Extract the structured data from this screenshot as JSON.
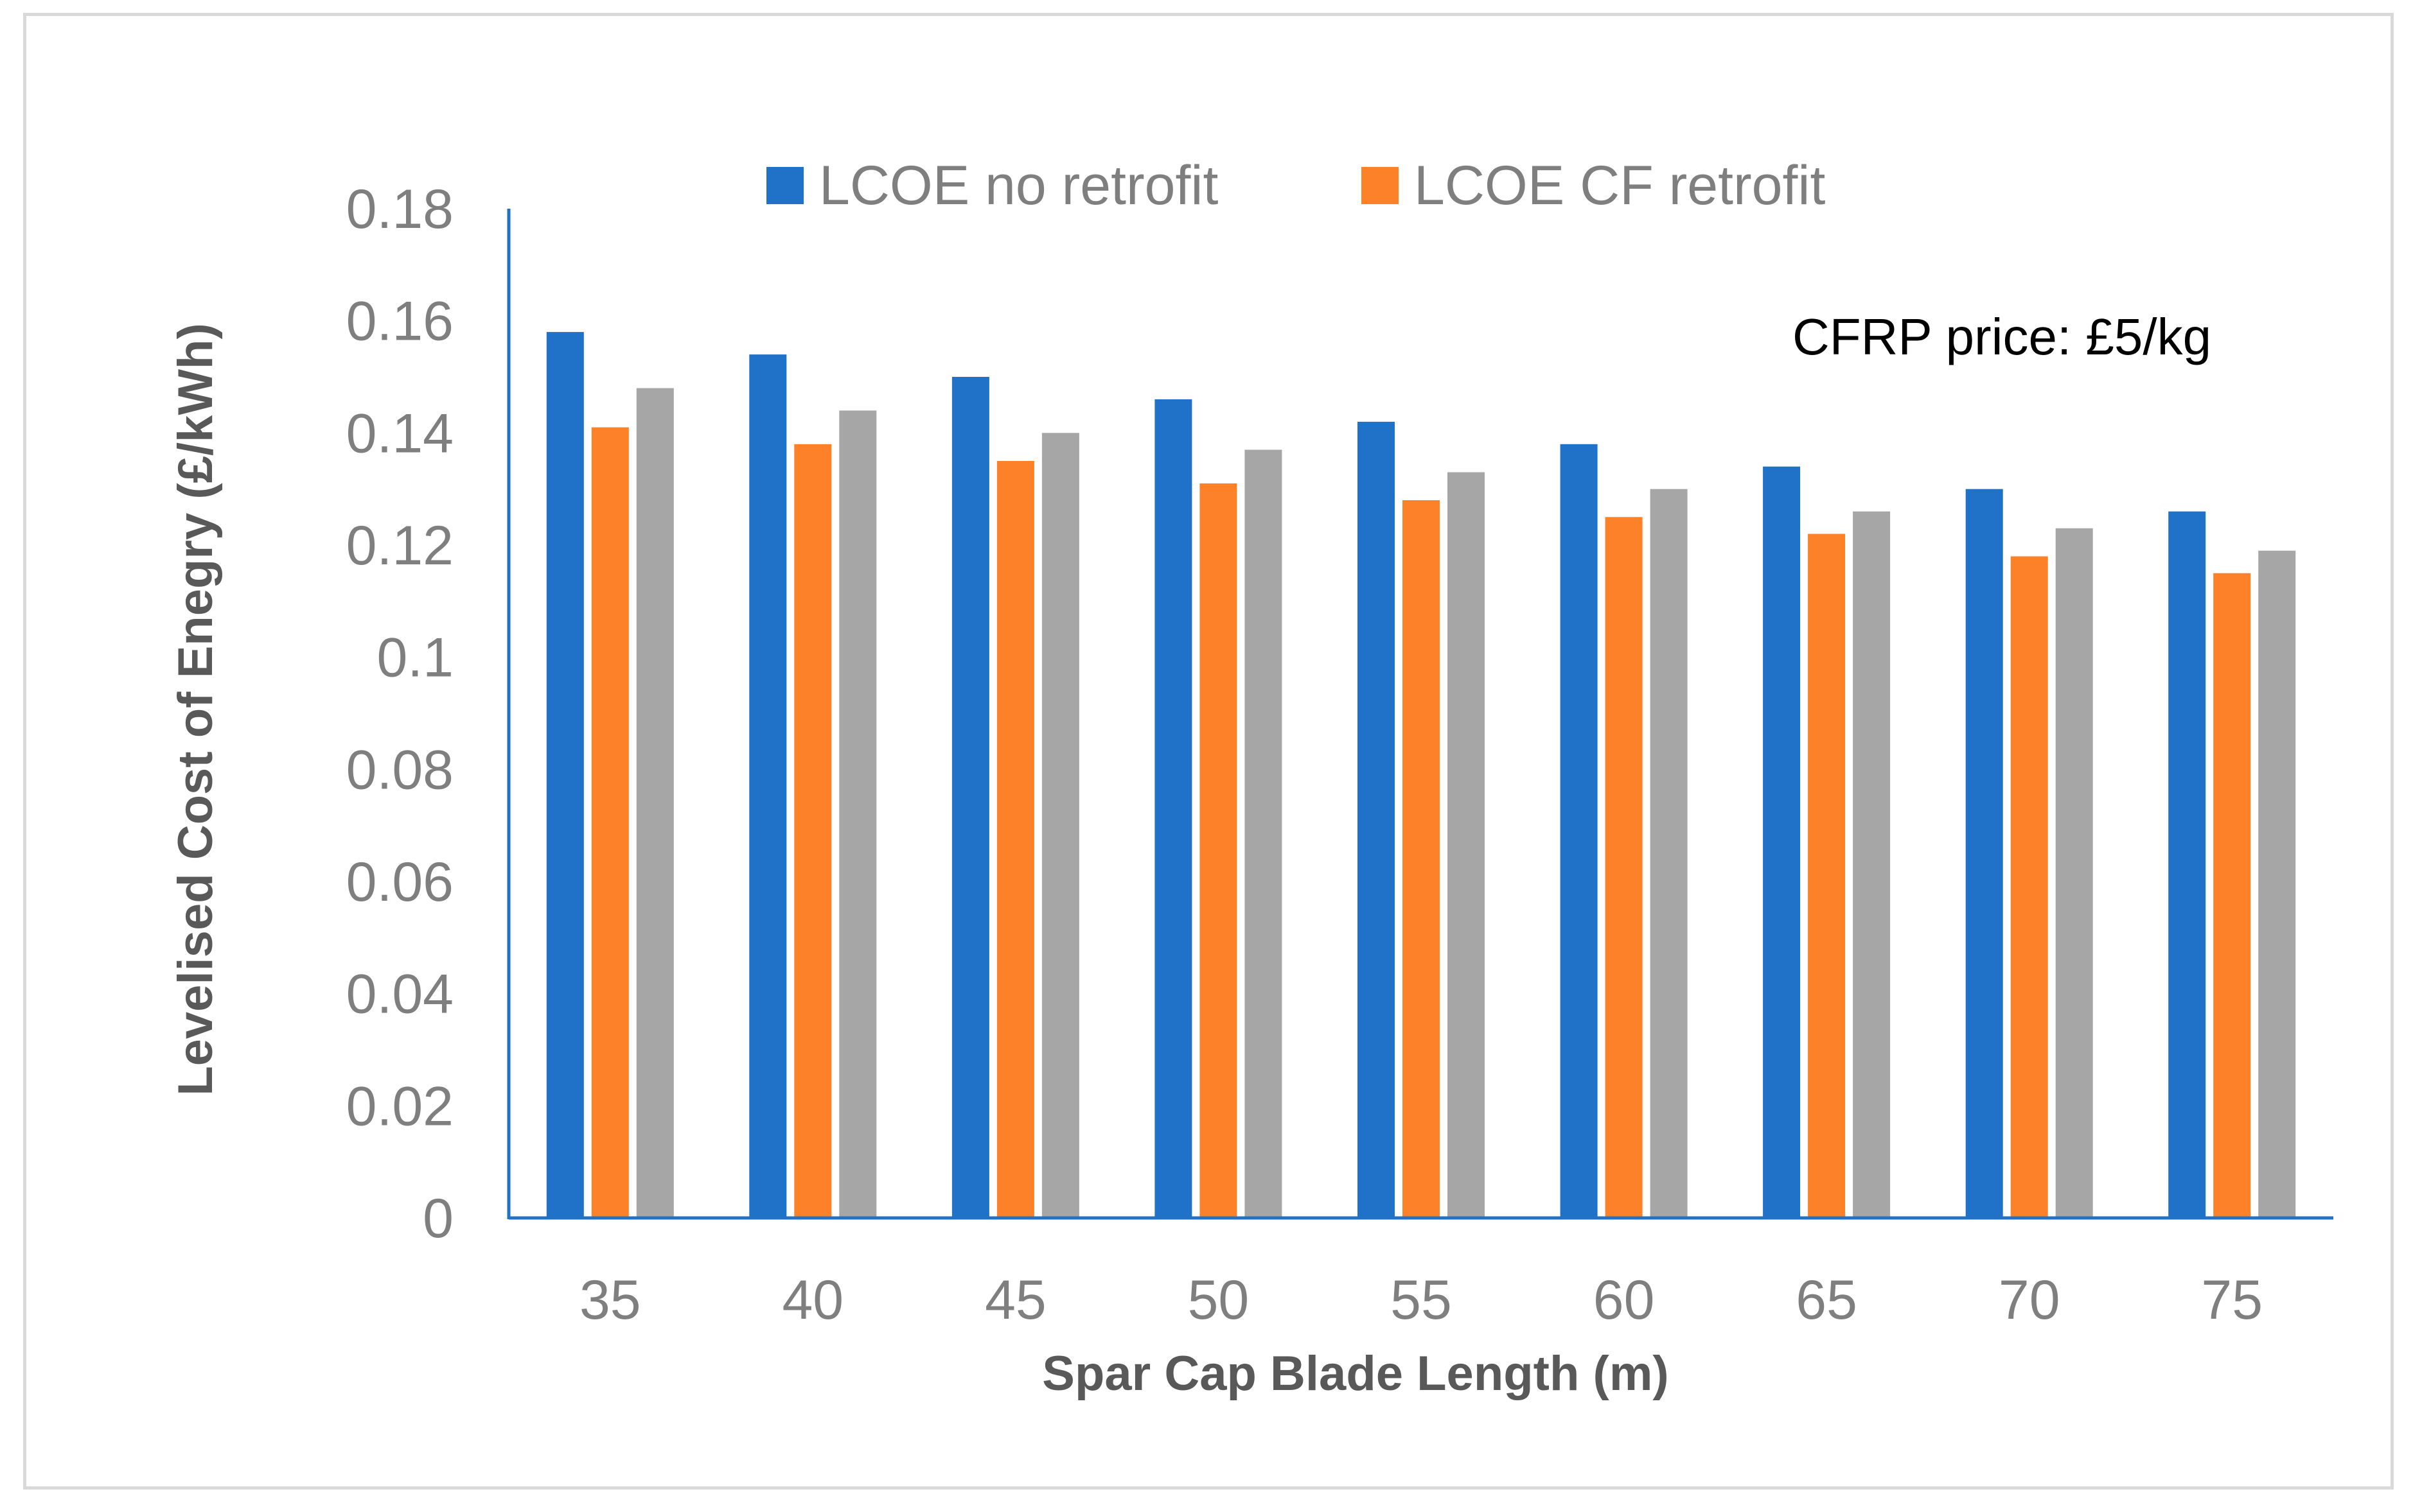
{
  "chart_data": {
    "type": "bar",
    "title": "",
    "xlabel": "Spar Cap Blade Length (m)",
    "ylabel": "Levelised Cost of Enegry (£/kWh)",
    "ylim": [
      0,
      0.18
    ],
    "yticks": [
      0,
      0.02,
      0.04,
      0.06,
      0.08,
      0.1,
      0.12,
      0.14,
      0.16,
      0.18
    ],
    "ytick_labels": [
      "0",
      "0.02",
      "0.04",
      "0.06",
      "0.08",
      "0.1",
      "0.12",
      "0.14",
      "0.16",
      "0.18"
    ],
    "grid": false,
    "legend_position": "top",
    "categories": [
      "35",
      "40",
      "45",
      "50",
      "55",
      "60",
      "65",
      "70",
      "75"
    ],
    "series": [
      {
        "name": "LCOE no retrofit",
        "color": "#1f72c7",
        "in_legend": true,
        "values": [
          0.158,
          0.154,
          0.15,
          0.146,
          0.142,
          0.138,
          0.134,
          0.13,
          0.126
        ]
      },
      {
        "name": "LCOE CF retrofit",
        "color": "#fd8128",
        "in_legend": true,
        "values": [
          0.141,
          0.138,
          0.135,
          0.131,
          0.128,
          0.125,
          0.122,
          0.118,
          0.115
        ]
      },
      {
        "name": "",
        "color": "#a6a6a6",
        "in_legend": false,
        "values": [
          0.148,
          0.144,
          0.14,
          0.137,
          0.133,
          0.13,
          0.126,
          0.123,
          0.119
        ]
      }
    ],
    "annotations": [
      {
        "text": "CFRP price: £5/kg",
        "position": "top-right"
      }
    ],
    "axis_color": "#1f72c7"
  }
}
